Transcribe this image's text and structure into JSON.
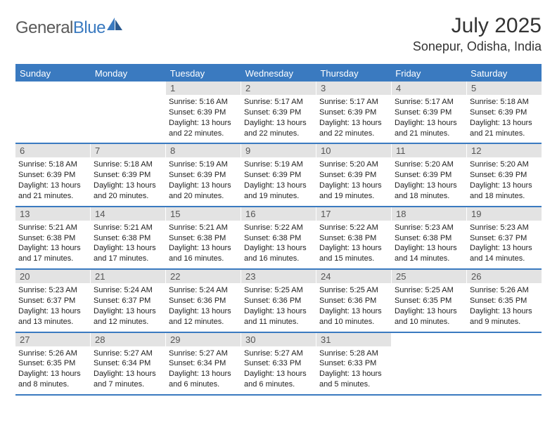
{
  "brand": {
    "name_a": "General",
    "name_b": "Blue"
  },
  "title": {
    "month_year": "July 2025",
    "location": "Sonepur, Odisha, India"
  },
  "colors": {
    "accent": "#3a7ac0",
    "header_bg": "#3a7ac0",
    "header_text": "#ffffff",
    "daynum_bg": "#e3e3e3",
    "daynum_text": "#555555",
    "body_text": "#222222",
    "border": "#3a7ac0"
  },
  "weekdays": [
    "Sunday",
    "Monday",
    "Tuesday",
    "Wednesday",
    "Thursday",
    "Friday",
    "Saturday"
  ],
  "weeks": [
    [
      {
        "n": "",
        "sr": "",
        "ss": "",
        "dl": ""
      },
      {
        "n": "",
        "sr": "",
        "ss": "",
        "dl": ""
      },
      {
        "n": "1",
        "sr": "Sunrise: 5:16 AM",
        "ss": "Sunset: 6:39 PM",
        "dl": "Daylight: 13 hours and 22 minutes."
      },
      {
        "n": "2",
        "sr": "Sunrise: 5:17 AM",
        "ss": "Sunset: 6:39 PM",
        "dl": "Daylight: 13 hours and 22 minutes."
      },
      {
        "n": "3",
        "sr": "Sunrise: 5:17 AM",
        "ss": "Sunset: 6:39 PM",
        "dl": "Daylight: 13 hours and 22 minutes."
      },
      {
        "n": "4",
        "sr": "Sunrise: 5:17 AM",
        "ss": "Sunset: 6:39 PM",
        "dl": "Daylight: 13 hours and 21 minutes."
      },
      {
        "n": "5",
        "sr": "Sunrise: 5:18 AM",
        "ss": "Sunset: 6:39 PM",
        "dl": "Daylight: 13 hours and 21 minutes."
      }
    ],
    [
      {
        "n": "6",
        "sr": "Sunrise: 5:18 AM",
        "ss": "Sunset: 6:39 PM",
        "dl": "Daylight: 13 hours and 21 minutes."
      },
      {
        "n": "7",
        "sr": "Sunrise: 5:18 AM",
        "ss": "Sunset: 6:39 PM",
        "dl": "Daylight: 13 hours and 20 minutes."
      },
      {
        "n": "8",
        "sr": "Sunrise: 5:19 AM",
        "ss": "Sunset: 6:39 PM",
        "dl": "Daylight: 13 hours and 20 minutes."
      },
      {
        "n": "9",
        "sr": "Sunrise: 5:19 AM",
        "ss": "Sunset: 6:39 PM",
        "dl": "Daylight: 13 hours and 19 minutes."
      },
      {
        "n": "10",
        "sr": "Sunrise: 5:20 AM",
        "ss": "Sunset: 6:39 PM",
        "dl": "Daylight: 13 hours and 19 minutes."
      },
      {
        "n": "11",
        "sr": "Sunrise: 5:20 AM",
        "ss": "Sunset: 6:39 PM",
        "dl": "Daylight: 13 hours and 18 minutes."
      },
      {
        "n": "12",
        "sr": "Sunrise: 5:20 AM",
        "ss": "Sunset: 6:39 PM",
        "dl": "Daylight: 13 hours and 18 minutes."
      }
    ],
    [
      {
        "n": "13",
        "sr": "Sunrise: 5:21 AM",
        "ss": "Sunset: 6:38 PM",
        "dl": "Daylight: 13 hours and 17 minutes."
      },
      {
        "n": "14",
        "sr": "Sunrise: 5:21 AM",
        "ss": "Sunset: 6:38 PM",
        "dl": "Daylight: 13 hours and 17 minutes."
      },
      {
        "n": "15",
        "sr": "Sunrise: 5:21 AM",
        "ss": "Sunset: 6:38 PM",
        "dl": "Daylight: 13 hours and 16 minutes."
      },
      {
        "n": "16",
        "sr": "Sunrise: 5:22 AM",
        "ss": "Sunset: 6:38 PM",
        "dl": "Daylight: 13 hours and 16 minutes."
      },
      {
        "n": "17",
        "sr": "Sunrise: 5:22 AM",
        "ss": "Sunset: 6:38 PM",
        "dl": "Daylight: 13 hours and 15 minutes."
      },
      {
        "n": "18",
        "sr": "Sunrise: 5:23 AM",
        "ss": "Sunset: 6:38 PM",
        "dl": "Daylight: 13 hours and 14 minutes."
      },
      {
        "n": "19",
        "sr": "Sunrise: 5:23 AM",
        "ss": "Sunset: 6:37 PM",
        "dl": "Daylight: 13 hours and 14 minutes."
      }
    ],
    [
      {
        "n": "20",
        "sr": "Sunrise: 5:23 AM",
        "ss": "Sunset: 6:37 PM",
        "dl": "Daylight: 13 hours and 13 minutes."
      },
      {
        "n": "21",
        "sr": "Sunrise: 5:24 AM",
        "ss": "Sunset: 6:37 PM",
        "dl": "Daylight: 13 hours and 12 minutes."
      },
      {
        "n": "22",
        "sr": "Sunrise: 5:24 AM",
        "ss": "Sunset: 6:36 PM",
        "dl": "Daylight: 13 hours and 12 minutes."
      },
      {
        "n": "23",
        "sr": "Sunrise: 5:25 AM",
        "ss": "Sunset: 6:36 PM",
        "dl": "Daylight: 13 hours and 11 minutes."
      },
      {
        "n": "24",
        "sr": "Sunrise: 5:25 AM",
        "ss": "Sunset: 6:36 PM",
        "dl": "Daylight: 13 hours and 10 minutes."
      },
      {
        "n": "25",
        "sr": "Sunrise: 5:25 AM",
        "ss": "Sunset: 6:35 PM",
        "dl": "Daylight: 13 hours and 10 minutes."
      },
      {
        "n": "26",
        "sr": "Sunrise: 5:26 AM",
        "ss": "Sunset: 6:35 PM",
        "dl": "Daylight: 13 hours and 9 minutes."
      }
    ],
    [
      {
        "n": "27",
        "sr": "Sunrise: 5:26 AM",
        "ss": "Sunset: 6:35 PM",
        "dl": "Daylight: 13 hours and 8 minutes."
      },
      {
        "n": "28",
        "sr": "Sunrise: 5:27 AM",
        "ss": "Sunset: 6:34 PM",
        "dl": "Daylight: 13 hours and 7 minutes."
      },
      {
        "n": "29",
        "sr": "Sunrise: 5:27 AM",
        "ss": "Sunset: 6:34 PM",
        "dl": "Daylight: 13 hours and 6 minutes."
      },
      {
        "n": "30",
        "sr": "Sunrise: 5:27 AM",
        "ss": "Sunset: 6:33 PM",
        "dl": "Daylight: 13 hours and 6 minutes."
      },
      {
        "n": "31",
        "sr": "Sunrise: 5:28 AM",
        "ss": "Sunset: 6:33 PM",
        "dl": "Daylight: 13 hours and 5 minutes."
      },
      {
        "n": "",
        "sr": "",
        "ss": "",
        "dl": ""
      },
      {
        "n": "",
        "sr": "",
        "ss": "",
        "dl": ""
      }
    ]
  ]
}
